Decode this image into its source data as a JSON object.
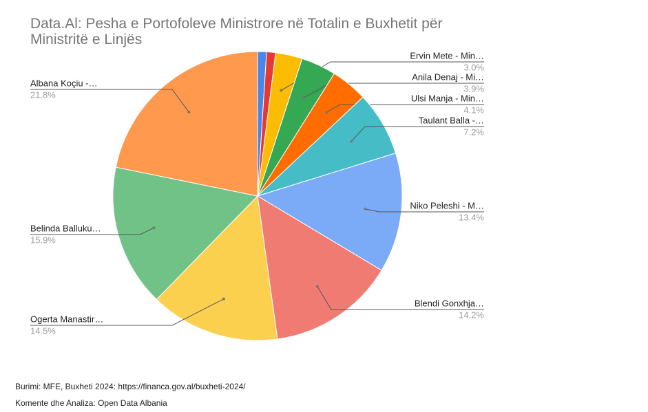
{
  "chart_data": {
    "type": "pie",
    "title": "Data.Al: Pesha e Portofoleve Ministrore në Totalin e Buxhetit për Ministritë e Linjës",
    "categories": [
      null,
      null,
      "Ervin Mete - Min…",
      "Anila Denaj - Mi…",
      "Ulsi Manja - Min…",
      "Taulant Balla -…",
      "Niko Peleshi - M…",
      "Blendi Gonxhja…",
      "Ogerta Manastir…",
      "Belinda Balluku…",
      "Albana Koçiu -…"
    ],
    "values": [
      1.0,
      1.0,
      3.0,
      3.9,
      4.1,
      7.2,
      13.4,
      14.2,
      14.5,
      15.9,
      21.8
    ],
    "value_labels": [
      null,
      null,
      "3.0%",
      "3.9%",
      "4.1%",
      "7.2%",
      "13.4%",
      "14.2%",
      "14.5%",
      "15.9%",
      "21.8%"
    ],
    "colors": [
      "#4a86e8",
      "#e53935",
      "#fbbc04",
      "#34a853",
      "#ff6d01",
      "#46bdc6",
      "#7baaf7",
      "#f07b72",
      "#fcd04f",
      "#71c287",
      "#ff994d"
    ]
  },
  "footer": {
    "source": "Burimi: MFE, Buxheti 2024: https://financa.gov.al/buxheti-2024/",
    "credit": "Komente dhe Analiza: Open Data Albania"
  }
}
